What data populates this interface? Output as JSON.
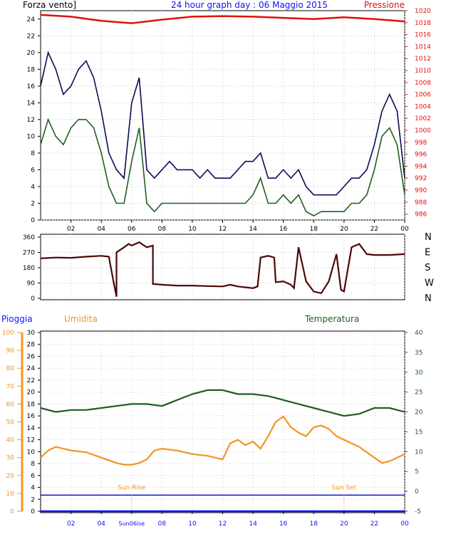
{
  "header": {
    "left_label": "Forza vento]",
    "title": "24 hour graph day : 06 Maggio 2015",
    "right_label": "Pressione"
  },
  "colors": {
    "gust": "#0b0b55",
    "wind": "#1f5f1f",
    "pressure": "#e01010",
    "direction": "#4a0808",
    "humidity": "#f39420",
    "temperature": "#1f5f1f",
    "rain": "#1010ff",
    "sun": "#f39420"
  },
  "chart_data": [
    {
      "type": "line",
      "name": "wind",
      "left_axis": {
        "ylim": [
          0,
          25
        ],
        "ticks": [
          0,
          2,
          4,
          6,
          8,
          10,
          12,
          14,
          16,
          18,
          20,
          22,
          24
        ]
      },
      "right_axis": {
        "ylim": [
          985,
          1020
        ],
        "ticks": [
          986,
          988,
          990,
          992,
          994,
          996,
          998,
          1000,
          1002,
          1004,
          1006,
          1008,
          1010,
          1012,
          1014,
          1016,
          1018,
          1020
        ]
      },
      "x_ticks": [
        "02",
        "04",
        "06",
        "08",
        "10",
        "12",
        "14",
        "16",
        "18",
        "20",
        "22",
        "00"
      ],
      "series": [
        {
          "key": "gust",
          "x": [
            0.0,
            0.5,
            1.0,
            1.5,
            2.0,
            2.5,
            3.0,
            3.5,
            4.0,
            4.5,
            5.0,
            5.5,
            6.0,
            6.5,
            7.0,
            7.5,
            8.0,
            8.5,
            9.0,
            9.5,
            10.0,
            10.5,
            11.0,
            11.5,
            12.0,
            12.5,
            13.0,
            13.5,
            14.0,
            14.5,
            15.0,
            15.5,
            16.0,
            16.5,
            17.0,
            17.5,
            18.0,
            18.5,
            19.0,
            19.5,
            20.0,
            20.5,
            21.0,
            21.5,
            22.0,
            22.5,
            23.0,
            23.5,
            24.0
          ],
          "values": [
            16,
            20,
            18,
            15,
            16,
            18,
            19,
            17,
            13,
            8,
            6,
            5,
            14,
            17,
            6,
            5,
            6,
            7,
            6,
            6,
            6,
            5,
            6,
            5,
            5,
            5,
            6,
            7,
            7,
            8,
            5,
            5,
            6,
            5,
            6,
            4,
            3,
            3,
            3,
            3,
            4,
            5,
            5,
            6,
            9,
            13,
            15,
            13,
            5
          ]
        },
        {
          "key": "wind",
          "x": [
            0.0,
            0.5,
            1.0,
            1.5,
            2.0,
            2.5,
            3.0,
            3.5,
            4.0,
            4.5,
            5.0,
            5.5,
            6.0,
            6.5,
            7.0,
            7.5,
            8.0,
            8.5,
            9.0,
            9.5,
            10.0,
            10.5,
            11.0,
            11.5,
            12.0,
            12.5,
            13.0,
            13.5,
            14.0,
            14.5,
            15.0,
            15.5,
            16.0,
            16.5,
            17.0,
            17.5,
            18.0,
            18.5,
            19.0,
            19.5,
            20.0,
            20.5,
            21.0,
            21.5,
            22.0,
            22.5,
            23.0,
            23.5,
            24.0
          ],
          "values": [
            9,
            12,
            10,
            9,
            11,
            12,
            12,
            11,
            8,
            4,
            2,
            2,
            7,
            11,
            2,
            1,
            2,
            2,
            2,
            2,
            2,
            2,
            2,
            2,
            2,
            2,
            2,
            2,
            3,
            5,
            2,
            2,
            3,
            2,
            3,
            1,
            0.5,
            1,
            1,
            1,
            1,
            2,
            2,
            3,
            6,
            10,
            11,
            9,
            3
          ]
        },
        {
          "key": "pressure",
          "axis": "right",
          "x": [
            0,
            2,
            4,
            6,
            8,
            10,
            12,
            14,
            16,
            18,
            20,
            22,
            24
          ],
          "values": [
            1019.3,
            1019.0,
            1018.3,
            1017.9,
            1018.5,
            1019.0,
            1019.1,
            1019.0,
            1018.8,
            1018.6,
            1018.9,
            1018.6,
            1018.2
          ]
        }
      ]
    },
    {
      "type": "line",
      "name": "direction",
      "ylim": [
        0,
        360
      ],
      "ticks": [
        0,
        90,
        180,
        270,
        360
      ],
      "compass": [
        "N",
        "W",
        "S",
        "E",
        "N"
      ],
      "x": [
        0,
        1,
        2,
        3,
        4,
        4.5,
        4.8,
        5,
        5,
        5.5,
        5.8,
        6,
        6.5,
        7,
        7.4,
        7.4,
        8,
        9,
        10,
        11,
        12,
        12.5,
        13,
        13.5,
        14,
        14.3,
        14.5,
        15,
        15.4,
        15.5,
        16,
        16.5,
        16.7,
        17,
        17.5,
        18,
        18.5,
        19,
        19.5,
        19.8,
        20,
        20.5,
        21,
        21.5,
        22,
        23,
        24
      ],
      "values": [
        235,
        240,
        238,
        245,
        250,
        245,
        100,
        10,
        270,
        300,
        320,
        310,
        330,
        300,
        310,
        85,
        80,
        75,
        75,
        72,
        70,
        80,
        70,
        65,
        60,
        70,
        240,
        250,
        240,
        95,
        100,
        80,
        60,
        300,
        100,
        40,
        30,
        100,
        260,
        50,
        40,
        300,
        320,
        260,
        255,
        255,
        260
      ]
    },
    {
      "type": "line",
      "name": "weather",
      "axes": {
        "rain": {
          "label": "Pioggia",
          "ylim": [
            0,
            100
          ],
          "ticks": [
            0,
            10,
            20,
            30,
            40,
            50,
            60,
            70,
            80,
            90,
            100
          ]
        },
        "humidity": {
          "label": "Umidita",
          "ylim": [
            0,
            30
          ],
          "ticks": [
            0,
            2,
            4,
            6,
            8,
            10,
            12,
            14,
            16,
            18,
            20,
            22,
            24,
            26,
            28,
            30
          ]
        },
        "temperature": {
          "label": "Temperatura",
          "ylim": [
            -5,
            40
          ],
          "ticks": [
            -5,
            0,
            5,
            10,
            15,
            20,
            25,
            30,
            35,
            40
          ]
        }
      },
      "x_ticks": [
        "02",
        "04",
        "06",
        "08",
        "10",
        "12",
        "14",
        "16",
        "18",
        "20",
        "22",
        "00"
      ],
      "sun_rise": {
        "label": "Sun Rise",
        "x": 6,
        "x_label": "Sun06ise"
      },
      "sun_set": {
        "label": "Sun Set",
        "x": 20
      },
      "series": [
        {
          "key": "temperature",
          "axis": "temperature",
          "x": [
            0,
            1,
            2,
            3,
            4,
            5,
            6,
            7,
            8,
            9,
            10,
            11,
            12,
            13,
            14,
            15,
            16,
            17,
            18,
            19,
            20,
            21,
            22,
            23,
            24
          ],
          "values": [
            21,
            20,
            20.5,
            20.5,
            21,
            21.5,
            22,
            22,
            21.5,
            23,
            24.5,
            25.5,
            25.5,
            24.5,
            24.5,
            24,
            23,
            22,
            21,
            20,
            19,
            19.5,
            21,
            21,
            20
          ]
        },
        {
          "key": "humidity",
          "axis": "rain",
          "x": [
            0,
            0.5,
            1,
            1.5,
            2,
            3,
            4,
            5,
            5.5,
            6,
            6.5,
            7,
            7.5,
            8,
            9,
            10,
            11,
            12,
            12.5,
            13,
            13.5,
            14,
            14.5,
            15,
            15.5,
            16,
            16.5,
            17,
            17.5,
            18,
            18.5,
            19,
            19.5,
            20,
            21,
            22,
            22.5,
            23,
            24
          ],
          "values": [
            30,
            34,
            36,
            35,
            34,
            33,
            30,
            27,
            26,
            26,
            27,
            29,
            34,
            35,
            34,
            32,
            31,
            29,
            38,
            40,
            37,
            39,
            35,
            42,
            50,
            53,
            47,
            44,
            42,
            47,
            48,
            46,
            42,
            40,
            36,
            30,
            27,
            28,
            32
          ]
        },
        {
          "key": "rain",
          "axis": "rain",
          "x": [
            0,
            24
          ],
          "values": [
            0,
            0
          ]
        }
      ],
      "rain_rate_line": {
        "axis": "rain",
        "value": 9
      }
    }
  ]
}
